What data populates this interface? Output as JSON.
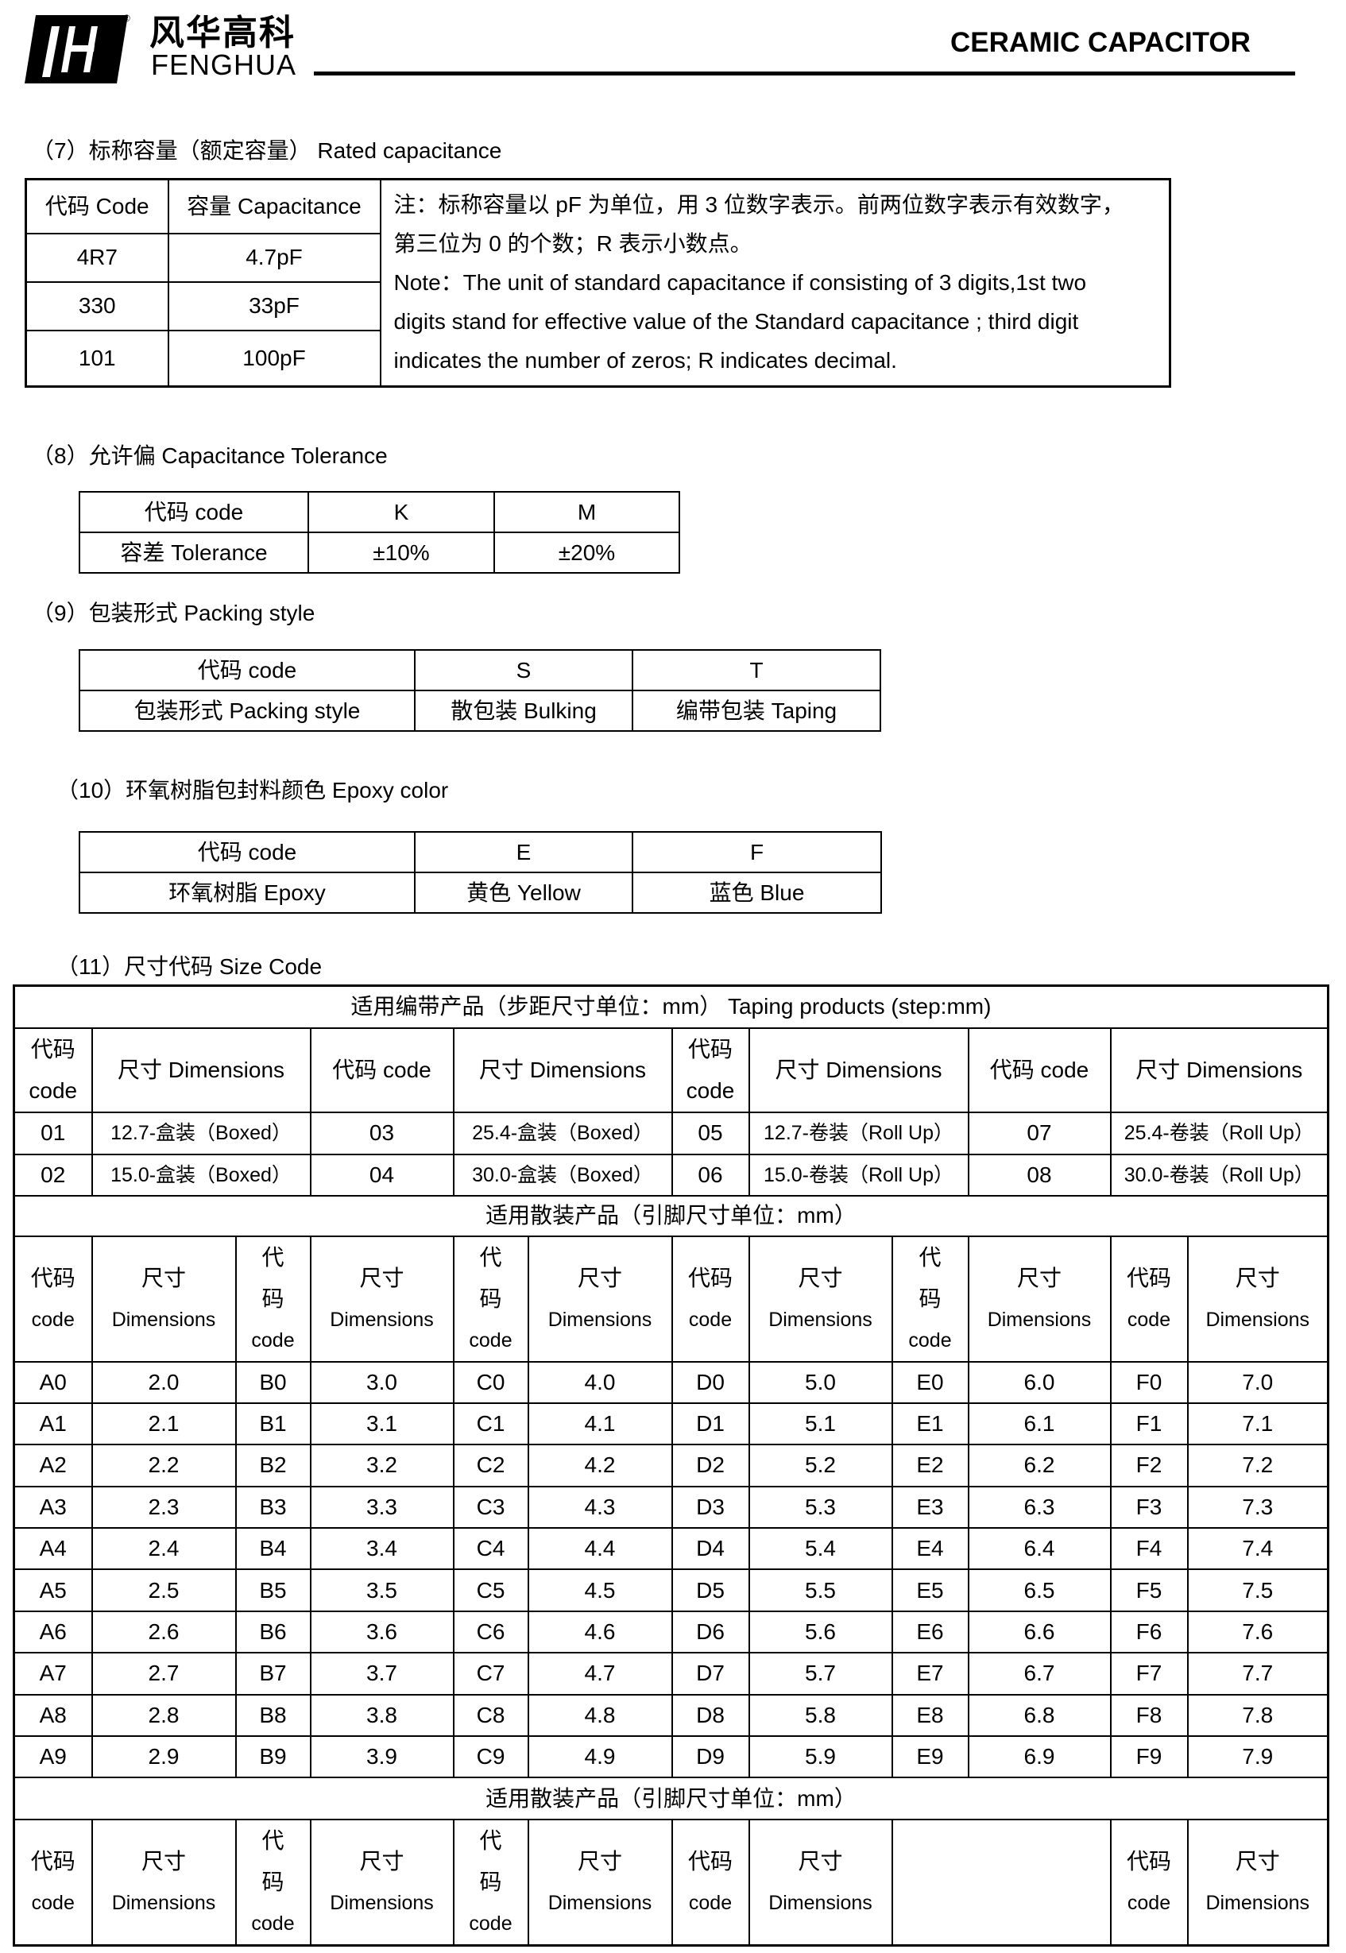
{
  "header": {
    "brand_cn": "风华高科",
    "brand_en": "FENGHUA",
    "title": "CERAMIC CAPACITOR",
    "logo_icon": "fenghua-logo"
  },
  "s7": {
    "heading": "（7）标称容量（额定容量） Rated capacitance",
    "headers": [
      "代码 Code",
      "容量 Capacitance"
    ],
    "rows": [
      [
        "4R7",
        "4.7pF"
      ],
      [
        "330",
        "33pF"
      ],
      [
        "101",
        "100pF"
      ]
    ],
    "note_lines": [
      "注：标称容量以 pF 为单位，用 3 位数字表示。前两位数字表示有效数字，",
      "第三位为 0 的个数；R 表示小数点。",
      "Note：The unit of standard capacitance if consisting of 3 digits,1st two",
      "digits stand for effective value of the Standard   capacitance ; third digit",
      "indicates the number of zeros; R indicates decimal."
    ]
  },
  "s8": {
    "heading": "（8）允许偏   Capacitance Tolerance",
    "rows": [
      [
        "代码 code",
        "K",
        "M"
      ],
      [
        "容差 Tolerance",
        "±10%",
        "±20%"
      ]
    ]
  },
  "s9": {
    "heading": "（9）包装形式   Packing style",
    "rows": [
      [
        "代码 code",
        "S",
        "T"
      ],
      [
        "包装形式   Packing style",
        "散包装 Bulking",
        "编带包装 Taping"
      ]
    ]
  },
  "s10": {
    "heading": "（10）环氧树脂包封料颜色  Epoxy color",
    "rows": [
      [
        "代码 code",
        "E",
        "F"
      ],
      [
        "环氧树脂 Epoxy",
        "黄色 Yellow",
        "蓝色 Blue"
      ]
    ]
  },
  "s11": {
    "heading": "（11）尺寸代码  Size Code",
    "taping_title": "适用编带产品（步距尺寸单位：mm）  Taping products (step:mm)",
    "taping_header": [
      [
        "代码",
        "code"
      ],
      [
        "尺寸 Dimensions"
      ],
      [
        "代码 code"
      ],
      [
        "尺寸 Dimensions"
      ],
      [
        "代码",
        "code"
      ],
      [
        "尺寸 Dimensions"
      ],
      [
        "代码 code"
      ],
      [
        "尺寸 Dimensions"
      ]
    ],
    "taping_rows": [
      [
        "01",
        "12.7-盒装（Boxed）",
        "03",
        "25.4-盒装（Boxed）",
        "05",
        "12.7-卷装（Roll Up）",
        "07",
        "25.4-卷装（Roll Up）"
      ],
      [
        "02",
        "15.0-盒装（Boxed）",
        "04",
        "30.0-盒装（Boxed）",
        "06",
        "15.0-卷装（Roll Up）",
        "08",
        "30.0-卷装（Roll Up）"
      ]
    ],
    "bulk_title": "适用散装产品（引脚尺寸单位：mm）",
    "bulk_header": [
      [
        "代码",
        "code"
      ],
      [
        "尺寸",
        "Dimensions"
      ],
      [
        "代",
        "码",
        "code"
      ],
      [
        "尺寸",
        "Dimensions"
      ],
      [
        "代",
        "码",
        "code"
      ],
      [
        "尺寸",
        "Dimensions"
      ],
      [
        "代码",
        "code"
      ],
      [
        "尺寸",
        "Dimensions"
      ],
      [
        "代",
        "码",
        "code"
      ],
      [
        "尺寸",
        "Dimensions"
      ],
      [
        "代码",
        "code"
      ],
      [
        "尺寸",
        "Dimensions"
      ]
    ],
    "bulk_rows": [
      [
        "A0",
        "2.0",
        "B0",
        "3.0",
        "C0",
        "4.0",
        "D0",
        "5.0",
        "E0",
        "6.0",
        "F0",
        "7.0"
      ],
      [
        "A1",
        "2.1",
        "B1",
        "3.1",
        "C1",
        "4.1",
        "D1",
        "5.1",
        "E1",
        "6.1",
        "F1",
        "7.1"
      ],
      [
        "A2",
        "2.2",
        "B2",
        "3.2",
        "C2",
        "4.2",
        "D2",
        "5.2",
        "E2",
        "6.2",
        "F2",
        "7.2"
      ],
      [
        "A3",
        "2.3",
        "B3",
        "3.3",
        "C3",
        "4.3",
        "D3",
        "5.3",
        "E3",
        "6.3",
        "F3",
        "7.3"
      ],
      [
        "A4",
        "2.4",
        "B4",
        "3.4",
        "C4",
        "4.4",
        "D4",
        "5.4",
        "E4",
        "6.4",
        "F4",
        "7.4"
      ],
      [
        "A5",
        "2.5",
        "B5",
        "3.5",
        "C5",
        "4.5",
        "D5",
        "5.5",
        "E5",
        "6.5",
        "F5",
        "7.5"
      ],
      [
        "A6",
        "2.6",
        "B6",
        "3.6",
        "C6",
        "4.6",
        "D6",
        "5.6",
        "E6",
        "6.6",
        "F6",
        "7.6"
      ],
      [
        "A7",
        "2.7",
        "B7",
        "3.7",
        "C7",
        "4.7",
        "D7",
        "5.7",
        "E7",
        "6.7",
        "F7",
        "7.7"
      ],
      [
        "A8",
        "2.8",
        "B8",
        "3.8",
        "C8",
        "4.8",
        "D8",
        "5.8",
        "E8",
        "6.8",
        "F8",
        "7.8"
      ],
      [
        "A9",
        "2.9",
        "B9",
        "3.9",
        "C9",
        "4.9",
        "D9",
        "5.9",
        "E9",
        "6.9",
        "F9",
        "7.9"
      ]
    ],
    "bulk_title2": "适用散装产品（引脚尺寸单位：mm）",
    "bulk_header2": [
      [
        "代码",
        "code"
      ],
      [
        "尺寸",
        "Dimensions"
      ],
      [
        "代",
        "码",
        "code"
      ],
      [
        "尺寸",
        "Dimensions"
      ],
      [
        "代",
        "码",
        "code"
      ],
      [
        "尺寸",
        "Dimensions"
      ],
      [
        "代码",
        "code"
      ],
      [
        "尺寸",
        "Dimensions"
      ],
      [],
      [
        "代码",
        "code"
      ],
      [
        "尺寸",
        "Dimensions"
      ]
    ]
  }
}
